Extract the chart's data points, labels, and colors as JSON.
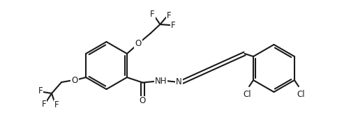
{
  "bg_color": "#ffffff",
  "line_color": "#1a1a1a",
  "line_width": 1.5,
  "font_size": 8.5,
  "fig_width": 5.03,
  "fig_height": 1.98,
  "dpi": 100,
  "xlim": [
    0,
    10.06
  ],
  "ylim": [
    0,
    3.96
  ]
}
